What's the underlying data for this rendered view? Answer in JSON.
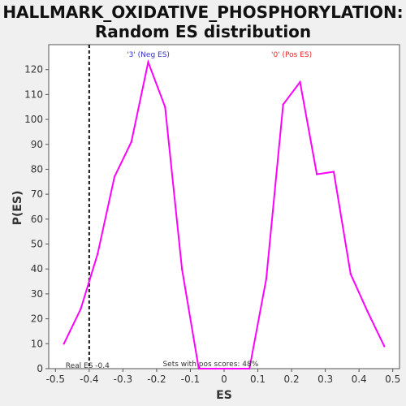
{
  "chart_data": {
    "type": "line",
    "title_lines": [
      "HALLMARK_OXIDATIVE_PHOSPHORYLATION:",
      "Random ES distribution"
    ],
    "xlabel": "ES",
    "ylabel": "P(ES)",
    "xlim": [
      -0.52,
      0.52
    ],
    "ylim": [
      0,
      130
    ],
    "xticks": [
      -0.5,
      -0.4,
      -0.3,
      -0.2,
      -0.1,
      0,
      0.1,
      0.2,
      0.3,
      0.4,
      0.5
    ],
    "xtick_labels": [
      "-0.5",
      "-0.4",
      "-0.3",
      "-0.2",
      "-0.1",
      "0",
      "0.1",
      "0.2",
      "0.3",
      "0.4",
      "0.5"
    ],
    "yticks": [
      0,
      10,
      20,
      30,
      40,
      50,
      60,
      70,
      80,
      90,
      100,
      110,
      120
    ],
    "ytick_labels": [
      "0",
      "10",
      "20",
      "30",
      "40",
      "50",
      "60",
      "70",
      "80",
      "90",
      "100",
      "110",
      "120"
    ],
    "grid": false,
    "series": [
      {
        "color": "#ff00ff",
        "x": [
          -0.475,
          -0.425,
          -0.375,
          -0.325,
          -0.275,
          -0.225,
          -0.175,
          -0.125,
          -0.075,
          -0.025,
          0.025,
          0.075,
          0.125,
          0.175,
          0.225,
          0.275,
          0.325,
          0.375,
          0.425,
          0.475
        ],
        "y": [
          10,
          24,
          46,
          77,
          91,
          123,
          105,
          40,
          0,
          0,
          0,
          0,
          36,
          106,
          115,
          78,
          79,
          38,
          23,
          9
        ]
      }
    ],
    "real_es": -0.4,
    "annotations": {
      "neg_label": "'3' (Neg ES)",
      "pos_label": "'0' (Pos ES)",
      "real_es_label": "Real ES -0.4",
      "pos_scores_label": "Sets with pos scores: 48%"
    },
    "colors": {
      "neg": "#3333cc",
      "pos": "#ee2222",
      "line": "#ff00ff",
      "real_es_line": "#111111"
    }
  }
}
